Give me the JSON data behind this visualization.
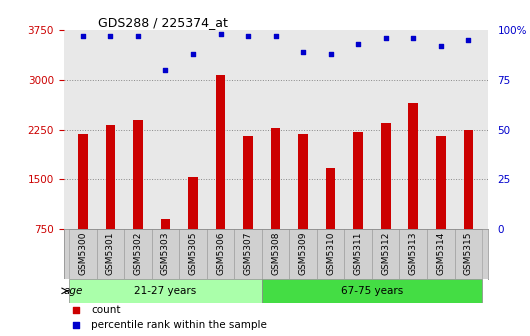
{
  "title": "GDS288 / 225374_at",
  "categories": [
    "GSM5300",
    "GSM5301",
    "GSM5302",
    "GSM5303",
    "GSM5305",
    "GSM5306",
    "GSM5307",
    "GSM5308",
    "GSM5309",
    "GSM5310",
    "GSM5311",
    "GSM5312",
    "GSM5313",
    "GSM5314",
    "GSM5315"
  ],
  "bar_values": [
    2180,
    2320,
    2390,
    900,
    1530,
    3080,
    2160,
    2280,
    2190,
    1680,
    2220,
    2350,
    2650,
    2160,
    2240
  ],
  "percentile_values": [
    97,
    97,
    97,
    80,
    88,
    98,
    97,
    97,
    89,
    88,
    93,
    96,
    96,
    92,
    95
  ],
  "bar_color": "#CC0000",
  "dot_color": "#0000CC",
  "ylim_left": [
    750,
    3750
  ],
  "ylim_right": [
    0,
    100
  ],
  "yticks_left": [
    750,
    1500,
    2250,
    3000,
    3750
  ],
  "yticks_right": [
    0,
    25,
    50,
    75,
    100
  ],
  "group1_count": 7,
  "group2_count": 8,
  "group1_label": "21-27 years",
  "group2_label": "67-75 years",
  "age_label": "age",
  "legend_count_label": "count",
  "legend_percentile_label": "percentile rank within the sample",
  "background_color": "#ffffff",
  "plot_bg_color": "#e8e8e8",
  "xlabel_bg_color": "#d0d0d0",
  "group1_color": "#aaffaa",
  "group2_color": "#44dd44",
  "grid_color": "#888888",
  "bar_width": 0.35
}
